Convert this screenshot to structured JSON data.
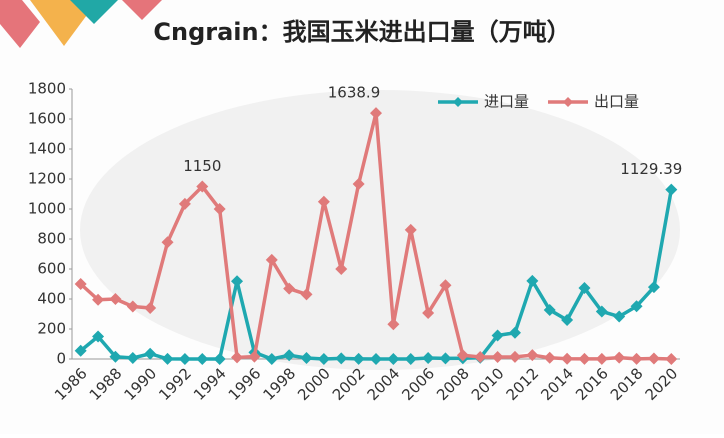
{
  "chart_data": {
    "type": "line",
    "title": "Cngrain：我国玉米进出口量（万吨）",
    "categories": [
      "1986",
      null,
      "1988",
      null,
      "1990",
      null,
      "1992",
      null,
      "1994",
      null,
      "1996",
      null,
      "1998",
      null,
      "2000",
      null,
      "2002",
      null,
      "2004",
      null,
      "2006",
      null,
      "2008",
      null,
      "2010",
      null,
      "2012",
      null,
      "2014",
      null,
      "2016",
      null,
      "2018",
      null,
      "2020"
    ],
    "series": [
      {
        "name": "进口量",
        "color": "#1fa8b0",
        "values": [
          55,
          150,
          15,
          7,
          35,
          1,
          0,
          0,
          0,
          518,
          44,
          0,
          25,
          7,
          0,
          4,
          1,
          0,
          0,
          0,
          7,
          4,
          5,
          8,
          157,
          175,
          521,
          327,
          260,
          473,
          317,
          283,
          352,
          479,
          1129.39
        ],
        "value_labels": [
          null,
          null,
          null,
          null,
          null,
          null,
          null,
          null,
          null,
          null,
          null,
          null,
          null,
          null,
          null,
          null,
          null,
          null,
          null,
          null,
          null,
          null,
          null,
          null,
          null,
          null,
          null,
          null,
          null,
          null,
          null,
          null,
          null,
          null,
          "1129.39"
        ]
      },
      {
        "name": "出口量",
        "color": "#e07a7a",
        "values": [
          500,
          395,
          400,
          350,
          340,
          778,
          1034,
          1150,
          1000,
          11,
          16,
          661,
          469,
          431,
          1048,
          600,
          1167,
          1638.9,
          232,
          861,
          307,
          492,
          25,
          13,
          13,
          14,
          26,
          8,
          2,
          1,
          1,
          9,
          1,
          3,
          0
        ],
        "value_labels": [
          null,
          null,
          null,
          null,
          null,
          null,
          null,
          "1150",
          null,
          null,
          null,
          null,
          null,
          null,
          null,
          null,
          null,
          "1638.9",
          null,
          null,
          null,
          null,
          null,
          null,
          null,
          null,
          null,
          null,
          null,
          null,
          null,
          null,
          null,
          null,
          null
        ]
      }
    ],
    "ylim": [
      0,
      1800
    ],
    "yticks": [
      0,
      200,
      400,
      600,
      800,
      1000,
      1200,
      1400,
      1600,
      1800
    ],
    "legend": "top-right"
  }
}
